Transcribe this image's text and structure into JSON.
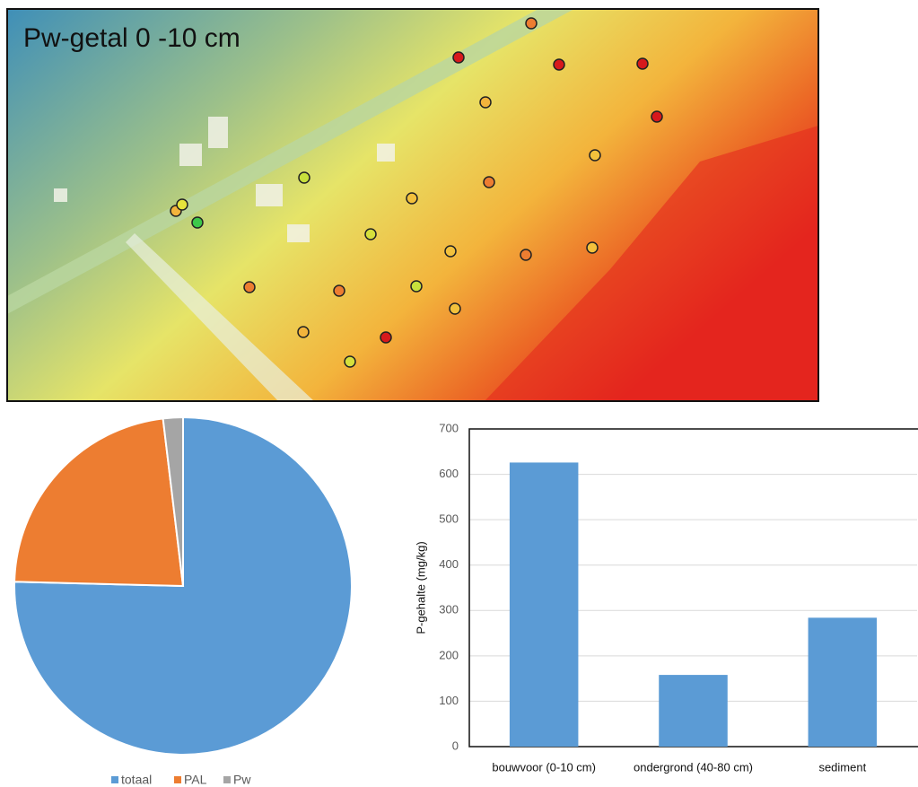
{
  "map": {
    "title": "Pw-getal 0 -10 cm"
  },
  "chart_data": [
    {
      "type": "pie",
      "categories": [
        "totaal",
        "PAL",
        "Pw"
      ],
      "values": [
        75.4,
        22.7,
        1.9
      ],
      "colors": [
        "#5b9bd5",
        "#ed7d31",
        "#a5a5a5"
      ],
      "legend": "bottom"
    },
    {
      "type": "bar",
      "y_label": "P-gehalte (mg/kg)",
      "categories": [
        "bouwvoor (0-10 cm)",
        "ondergrond (40-80 cm)",
        "sediment"
      ],
      "values": [
        626,
        158,
        284
      ],
      "color": "#5b9bd5",
      "ylim": [
        0,
        700
      ],
      "yticks": [
        0,
        100,
        200,
        300,
        400,
        500,
        600,
        700
      ],
      "grid": true
    }
  ]
}
